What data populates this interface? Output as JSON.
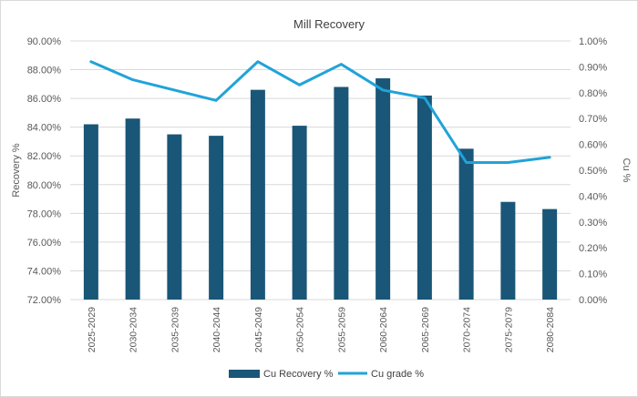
{
  "chart_data": {
    "type": "bar+line",
    "title": "Mill Recovery",
    "categories": [
      "2025-2029",
      "2030-2034",
      "2035-2039",
      "2040-2044",
      "2045-2049",
      "2050-2054",
      "2055-2059",
      "2060-2064",
      "2065-2069",
      "2070-2074",
      "2075-2079",
      "2080-2084"
    ],
    "series": [
      {
        "name": "Cu Recovery %",
        "type": "bar",
        "axis": "left",
        "color": "#1a5677",
        "values": [
          84.2,
          84.6,
          83.5,
          83.4,
          86.6,
          84.1,
          86.8,
          87.4,
          86.2,
          82.5,
          78.8,
          78.3
        ]
      },
      {
        "name": "Cu grade %",
        "type": "line",
        "axis": "right",
        "color": "#21a3d8",
        "values": [
          0.92,
          0.85,
          0.81,
          0.77,
          0.92,
          0.83,
          0.91,
          0.81,
          0.78,
          0.53,
          0.53,
          0.55
        ]
      }
    ],
    "ylabel": "Recovery %",
    "ylabel_right": "Cu %",
    "ylim": [
      72,
      90
    ],
    "ylim_right": [
      0,
      1
    ],
    "y_ticks": [
      "90.00%",
      "88.00%",
      "86.00%",
      "84.00%",
      "82.00%",
      "80.00%",
      "78.00%",
      "76.00%",
      "74.00%",
      "72.00%"
    ],
    "y_ticks_right": [
      "1.00%",
      "0.90%",
      "0.80%",
      "0.70%",
      "0.60%",
      "0.50%",
      "0.40%",
      "0.30%",
      "0.20%",
      "0.10%",
      "0.00%"
    ],
    "grid": true,
    "legend": "bottom-center"
  }
}
